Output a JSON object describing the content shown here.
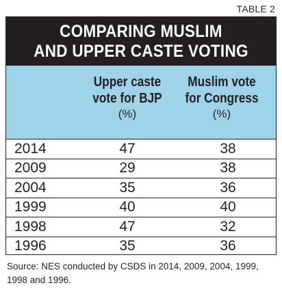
{
  "tag": "TABLE 2",
  "title": [
    "COMPARING MUSLIM",
    "AND UPPER CASTE VOTING"
  ],
  "columns": [
    {
      "line1": "Upper caste",
      "line2": "vote for BJP",
      "unit": "(%)"
    },
    {
      "line1": "Muslim vote",
      "line2": "for Congress",
      "unit": "(%)"
    }
  ],
  "source": "Source: NES conducted by CSDS in 2014, 2009, 2004, 1999, 1998 and 1996.",
  "chart_data": {
    "type": "table",
    "title": "COMPARING MUSLIM AND UPPER CASTE VOTING",
    "categories": [
      "2014",
      "2009",
      "2004",
      "1999",
      "1998",
      "1996"
    ],
    "series": [
      {
        "name": "Upper caste vote for BJP (%)",
        "values": [
          47,
          29,
          35,
          40,
          47,
          35
        ]
      },
      {
        "name": "Muslim vote for Congress (%)",
        "values": [
          38,
          38,
          36,
          40,
          32,
          36
        ]
      }
    ],
    "colors": {
      "title_bg": "#231f20",
      "header_bg": "#9fd3ea",
      "text": "#231f20"
    }
  }
}
